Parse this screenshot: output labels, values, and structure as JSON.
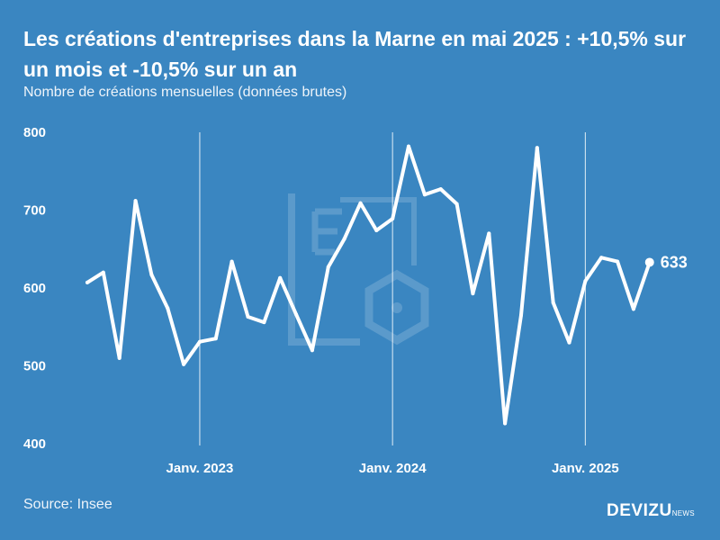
{
  "header": {
    "title": "Les créations d'entreprises dans la Marne en mai 2025 : +10,5% sur un mois et -10,5% sur un an",
    "subtitle": "Nombre de créations mensuelles (données brutes)"
  },
  "footer": {
    "source": "Source: Insee",
    "brand_main": "DEVIZU",
    "brand_sub": "NEWS"
  },
  "chart_data": {
    "type": "line",
    "ylim": [
      400,
      800
    ],
    "y_ticks": [
      800,
      700,
      600,
      500,
      400
    ],
    "x_ticks": [
      "Janv. 2023",
      "Janv. 2024",
      "Janv. 2025"
    ],
    "x": [
      "2022-06",
      "2022-07",
      "2022-08",
      "2022-09",
      "2022-10",
      "2022-11",
      "2022-12",
      "2023-01",
      "2023-02",
      "2023-03",
      "2023-04",
      "2023-05",
      "2023-06",
      "2023-07",
      "2023-08",
      "2023-09",
      "2023-10",
      "2023-11",
      "2023-12",
      "2024-01",
      "2024-02",
      "2024-03",
      "2024-04",
      "2024-05",
      "2024-06",
      "2024-07",
      "2024-08",
      "2024-09",
      "2024-10",
      "2024-11",
      "2024-12",
      "2025-01",
      "2025-02",
      "2025-03",
      "2025-04",
      "2025-05"
    ],
    "values": [
      607,
      620,
      510,
      712,
      617,
      574,
      502,
      531,
      535,
      634,
      563,
      556,
      613,
      566,
      520,
      627,
      663,
      709,
      674,
      689,
      782,
      720,
      727,
      708,
      593,
      670,
      426,
      565,
      780,
      581,
      530,
      609,
      639,
      634,
      573,
      633
    ],
    "end_label": "633",
    "grid": "vertical lines at January ticks",
    "color": "#ffffff"
  }
}
